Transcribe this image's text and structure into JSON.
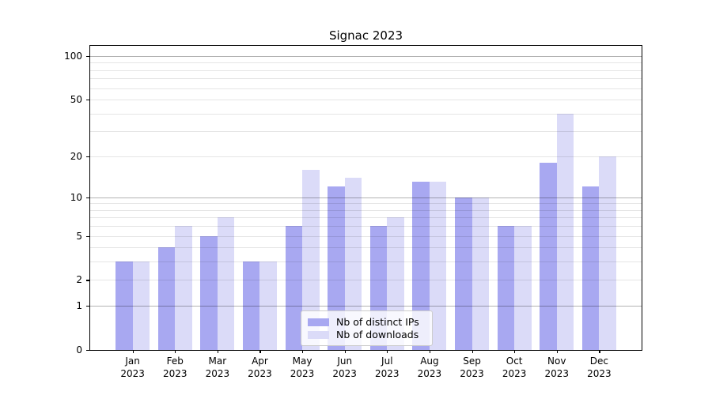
{
  "chart_data": {
    "type": "bar",
    "title": "Signac 2023",
    "x": {
      "months": [
        "Jan",
        "Feb",
        "Mar",
        "Apr",
        "May",
        "Jun",
        "Jul",
        "Aug",
        "Sep",
        "Oct",
        "Nov",
        "Dec"
      ],
      "year": "2023"
    },
    "series": [
      {
        "name": "Nb of distinct IPs",
        "color": "#a8a8f1",
        "values": [
          3,
          4,
          5,
          3,
          6,
          12,
          6,
          13,
          10,
          6,
          18,
          12
        ]
      },
      {
        "name": "Nb of downloads",
        "color": "#dbdbf8",
        "values": [
          3,
          6,
          7,
          3,
          16,
          14,
          7,
          13,
          10,
          6,
          40,
          20
        ]
      }
    ],
    "y_axis": {
      "scale": "log10(1+x)",
      "tick_values": [
        0,
        1,
        2,
        5,
        10,
        20,
        50,
        100
      ],
      "major_gridlines": [
        1,
        10,
        100
      ],
      "minor_gridlines": [
        2,
        3,
        4,
        5,
        6,
        7,
        8,
        9,
        20,
        30,
        40,
        50,
        60,
        70,
        80,
        90
      ],
      "range": [
        0,
        117.5
      ]
    },
    "x_axis": {
      "range": [
        -1,
        12
      ]
    },
    "legend_position": "lower center inside",
    "grid": true
  },
  "colors": {
    "major_grid": "rgba(0,0,0,0.30)",
    "minor_grid": "rgba(0,0,0,0.10)",
    "spine": "#000000",
    "legend_border": "#cccccc",
    "legend_background": "rgba(255,255,255,0.8)"
  }
}
